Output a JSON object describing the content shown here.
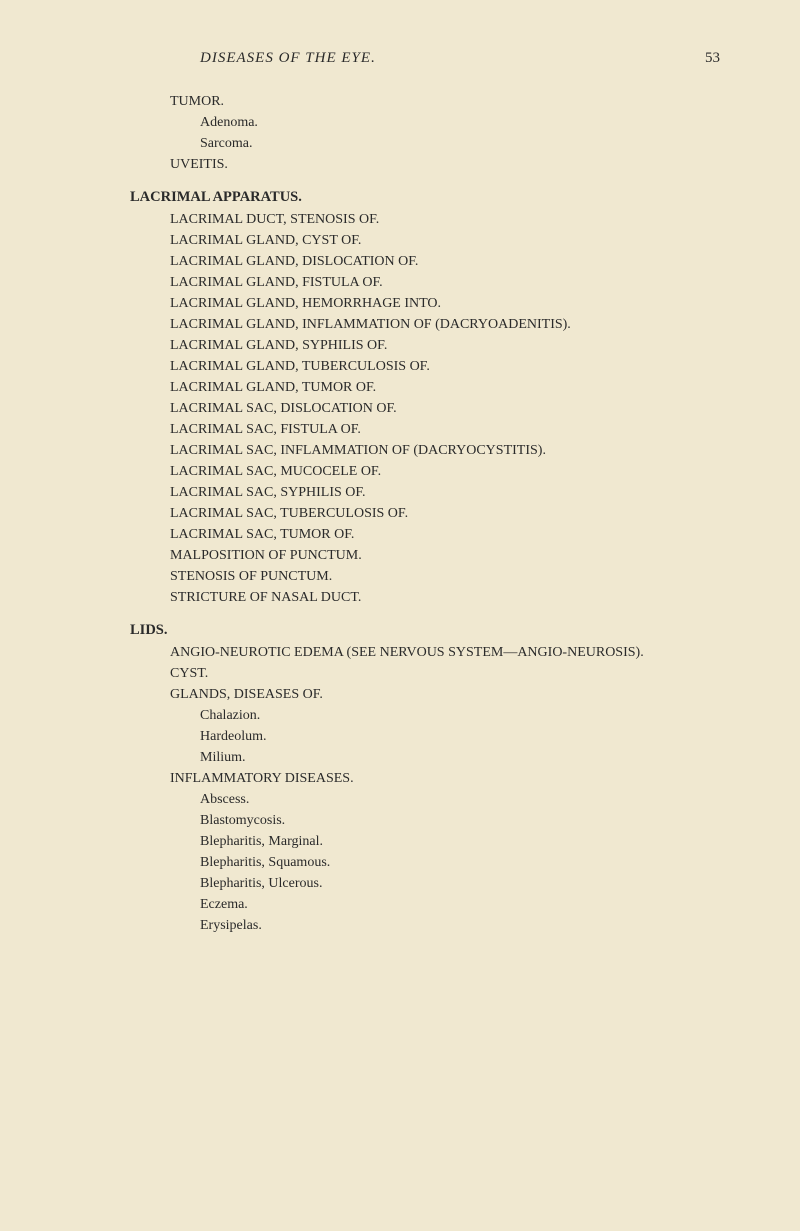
{
  "header": {
    "title": "DISEASES OF THE EYE.",
    "page_number": "53"
  },
  "content": [
    {
      "level": 0,
      "text": "TUMOR."
    },
    {
      "level": 1,
      "text": "Adenoma."
    },
    {
      "level": 1,
      "text": "Sarcoma."
    },
    {
      "level": 0,
      "text": "UVEITIS."
    },
    {
      "heading": true,
      "text": "LACRIMAL APPARATUS."
    },
    {
      "level": 0,
      "text": "LACRIMAL DUCT, STENOSIS OF."
    },
    {
      "level": 0,
      "text": "LACRIMAL GLAND, CYST OF."
    },
    {
      "level": 0,
      "text": "LACRIMAL GLAND, DISLOCATION OF."
    },
    {
      "level": 0,
      "text": "LACRIMAL GLAND, FISTULA OF."
    },
    {
      "level": 0,
      "text": "LACRIMAL GLAND, HEMORRHAGE INTO."
    },
    {
      "level": 0,
      "text": "LACRIMAL GLAND, INFLAMMATION OF (DACRYOADENITIS)."
    },
    {
      "level": 0,
      "text": "LACRIMAL GLAND, SYPHILIS OF."
    },
    {
      "level": 0,
      "text": "LACRIMAL GLAND, TUBERCULOSIS OF."
    },
    {
      "level": 0,
      "text": "LACRIMAL GLAND, TUMOR OF."
    },
    {
      "level": 0,
      "text": "LACRIMAL SAC, DISLOCATION OF."
    },
    {
      "level": 0,
      "text": "LACRIMAL SAC, FISTULA OF."
    },
    {
      "level": 0,
      "text": "LACRIMAL SAC, INFLAMMATION OF (DACRYOCYSTITIS)."
    },
    {
      "level": 0,
      "text": "LACRIMAL SAC, MUCOCELE OF."
    },
    {
      "level": 0,
      "text": "LACRIMAL SAC, SYPHILIS OF."
    },
    {
      "level": 0,
      "text": "LACRIMAL SAC, TUBERCULOSIS OF."
    },
    {
      "level": 0,
      "text": "LACRIMAL SAC, TUMOR OF."
    },
    {
      "level": 0,
      "text": "MALPOSITION OF PUNCTUM."
    },
    {
      "level": 0,
      "text": "STENOSIS OF PUNCTUM."
    },
    {
      "level": 0,
      "text": "STRICTURE OF NASAL DUCT."
    },
    {
      "heading": true,
      "text": "LIDS."
    },
    {
      "level": 0,
      "text": "ANGIO-NEUROTIC EDEMA (SEE NERVOUS SYSTEM—ANGIO-NEUROSIS)."
    },
    {
      "level": 0,
      "text": "CYST."
    },
    {
      "level": 0,
      "text": "GLANDS, DISEASES OF."
    },
    {
      "level": 1,
      "text": "Chalazion."
    },
    {
      "level": 1,
      "text": "Hardeolum."
    },
    {
      "level": 1,
      "text": "Milium."
    },
    {
      "level": 0,
      "text": "INFLAMMATORY DISEASES."
    },
    {
      "level": 1,
      "text": "Abscess."
    },
    {
      "level": 1,
      "text": "Blastomycosis."
    },
    {
      "level": 1,
      "text": "Blepharitis, Marginal."
    },
    {
      "level": 1,
      "text": "Blepharitis, Squamous."
    },
    {
      "level": 1,
      "text": "Blepharitis, Ulcerous."
    },
    {
      "level": 1,
      "text": "Eczema."
    },
    {
      "level": 1,
      "text": "Erysipelas."
    }
  ]
}
